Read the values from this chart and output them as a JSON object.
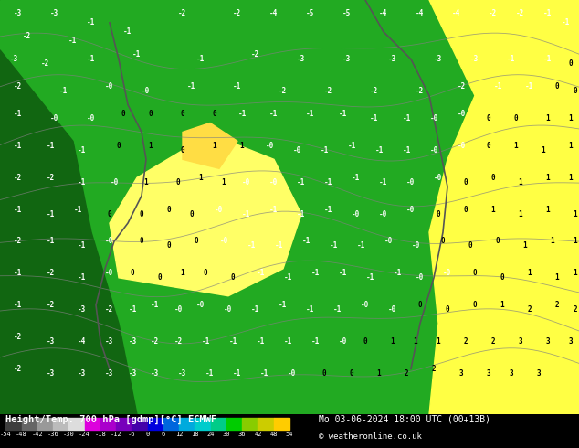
{
  "title_left": "Height/Temp. 700 hPa [gdmp][°C] ECMWF",
  "title_right": "Mo 03-06-2024 18:00 UTC (00+13B)",
  "copyright": "© weatheronline.co.uk",
  "colorbar_values": [
    -54,
    -48,
    -42,
    -36,
    -30,
    -24,
    -18,
    -12,
    -6,
    0,
    6,
    12,
    18,
    24,
    30,
    36,
    42,
    48,
    54
  ],
  "colorbar_colors": [
    "#2d2d2d",
    "#555555",
    "#808080",
    "#aaaaaa",
    "#d4d4d4",
    "#cc00cc",
    "#9900cc",
    "#6600cc",
    "#3300cc",
    "#0000cc",
    "#0055cc",
    "#00aacc",
    "#00cccc",
    "#00cc66",
    "#00cc00",
    "#66cc00",
    "#cccc00",
    "#ffaa00",
    "#ff6600",
    "#ff0000",
    "#cc0000",
    "#990000"
  ],
  "map_bg_color": "#22aa22",
  "map_colors": {
    "dark_green": "#006600",
    "green": "#22aa22",
    "light_green": "#88cc44",
    "yellow_green": "#cccc00",
    "yellow": "#ffff00",
    "orange": "#ffaa00",
    "light_yellow": "#ffff88"
  },
  "bottom_bar_color": "#000000",
  "text_color_light": "#ffffff",
  "text_color_dark": "#000000",
  "fig_width": 6.34,
  "fig_height": 4.9,
  "dpi": 100
}
